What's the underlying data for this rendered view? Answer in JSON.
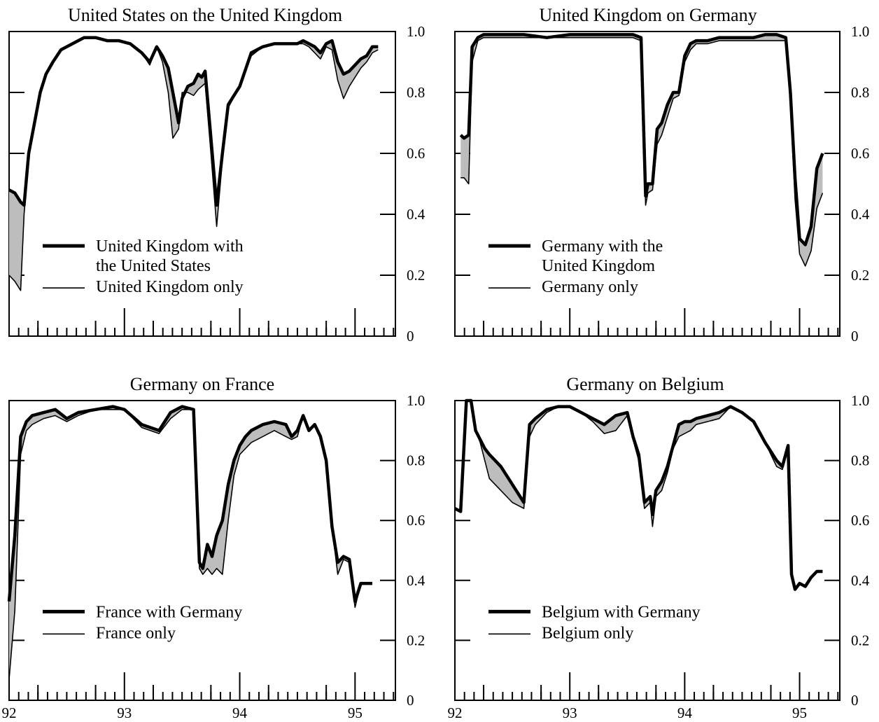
{
  "chart_data": [
    {
      "type": "line",
      "title": "United States on the United Kingdom",
      "x_ticks": [
        "92",
        "93",
        "94",
        "95"
      ],
      "y_ticks": [
        "0",
        "0.2",
        "0.4",
        "0.6",
        "0.8",
        "1.0"
      ],
      "ylim": [
        0,
        1
      ],
      "xlim": [
        92.0,
        95.35
      ],
      "grid": false,
      "legend_position": "lower-left",
      "series": [
        {
          "name": "United Kingdom with the United States",
          "style": "thick",
          "x": [
            92.0,
            92.05,
            92.1,
            92.13,
            92.17,
            92.22,
            92.27,
            92.32,
            92.38,
            92.45,
            92.55,
            92.65,
            92.75,
            92.85,
            92.95,
            93.05,
            93.15,
            93.22,
            93.28,
            93.33,
            93.38,
            93.42,
            93.47,
            93.5,
            93.55,
            93.6,
            93.64,
            93.67,
            93.7,
            93.75,
            93.8,
            93.85,
            93.9,
            94.0,
            94.1,
            94.2,
            94.3,
            94.4,
            94.5,
            94.55,
            94.6,
            94.65,
            94.7,
            94.75,
            94.8,
            94.85,
            94.9,
            94.95,
            95.05,
            95.1,
            95.15,
            95.2
          ],
          "values": [
            0.48,
            0.47,
            0.44,
            0.43,
            0.6,
            0.7,
            0.8,
            0.86,
            0.9,
            0.94,
            0.96,
            0.98,
            0.98,
            0.97,
            0.97,
            0.96,
            0.93,
            0.9,
            0.95,
            0.92,
            0.88,
            0.8,
            0.7,
            0.78,
            0.82,
            0.83,
            0.86,
            0.85,
            0.87,
            0.65,
            0.43,
            0.6,
            0.76,
            0.82,
            0.93,
            0.95,
            0.96,
            0.96,
            0.96,
            0.97,
            0.96,
            0.95,
            0.93,
            0.96,
            0.97,
            0.9,
            0.86,
            0.87,
            0.91,
            0.92,
            0.95,
            0.95
          ]
        },
        {
          "name": "United Kingdom only",
          "style": "thin",
          "x": [
            92.0,
            92.05,
            92.1,
            92.13,
            92.17,
            92.22,
            92.27,
            92.32,
            92.38,
            92.45,
            92.55,
            92.65,
            92.75,
            92.85,
            92.95,
            93.05,
            93.15,
            93.22,
            93.28,
            93.33,
            93.38,
            93.42,
            93.47,
            93.5,
            93.55,
            93.6,
            93.64,
            93.67,
            93.7,
            93.75,
            93.8,
            93.85,
            93.9,
            94.0,
            94.1,
            94.2,
            94.3,
            94.4,
            94.5,
            94.55,
            94.6,
            94.65,
            94.7,
            94.75,
            94.8,
            94.85,
            94.9,
            94.95,
            95.05,
            95.1,
            95.15,
            95.2
          ],
          "values": [
            0.2,
            0.18,
            0.15,
            0.4,
            0.58,
            0.7,
            0.8,
            0.86,
            0.9,
            0.94,
            0.96,
            0.98,
            0.98,
            0.97,
            0.97,
            0.96,
            0.93,
            0.89,
            0.95,
            0.9,
            0.8,
            0.65,
            0.68,
            0.8,
            0.8,
            0.79,
            0.81,
            0.82,
            0.83,
            0.6,
            0.36,
            0.58,
            0.75,
            0.82,
            0.92,
            0.95,
            0.96,
            0.96,
            0.96,
            0.96,
            0.95,
            0.93,
            0.91,
            0.95,
            0.94,
            0.84,
            0.78,
            0.82,
            0.88,
            0.9,
            0.93,
            0.94
          ]
        }
      ]
    },
    {
      "type": "line",
      "title": "United Kingdom on Germany",
      "x_ticks": [
        "92",
        "93",
        "94",
        "95"
      ],
      "y_ticks": [
        "0",
        "0.2",
        "0.4",
        "0.6",
        "0.8",
        "1.0"
      ],
      "ylim": [
        0,
        1
      ],
      "xlim": [
        92.0,
        95.35
      ],
      "grid": false,
      "legend_position": "lower-left",
      "series": [
        {
          "name": "Germany with the United Kingdom",
          "style": "thick",
          "x": [
            92.05,
            92.08,
            92.12,
            92.15,
            92.2,
            92.25,
            92.3,
            92.35,
            92.45,
            92.6,
            92.8,
            93.0,
            93.2,
            93.4,
            93.55,
            93.62,
            93.66,
            93.68,
            93.72,
            93.76,
            93.8,
            93.85,
            93.9,
            93.95,
            94.0,
            94.05,
            94.1,
            94.2,
            94.3,
            94.4,
            94.5,
            94.6,
            94.7,
            94.8,
            94.88,
            94.92,
            94.96,
            95.0,
            95.05,
            95.1,
            95.15,
            95.2
          ],
          "values": [
            0.66,
            0.65,
            0.66,
            0.95,
            0.98,
            0.99,
            0.99,
            0.99,
            0.99,
            0.99,
            0.98,
            0.99,
            0.99,
            0.99,
            0.99,
            0.98,
            0.46,
            0.5,
            0.5,
            0.68,
            0.7,
            0.76,
            0.8,
            0.8,
            0.92,
            0.96,
            0.97,
            0.97,
            0.98,
            0.98,
            0.98,
            0.98,
            0.99,
            0.99,
            0.98,
            0.8,
            0.52,
            0.32,
            0.3,
            0.36,
            0.55,
            0.6
          ]
        },
        {
          "name": "Germany only",
          "style": "thin",
          "x": [
            92.05,
            92.08,
            92.12,
            92.15,
            92.2,
            92.25,
            92.3,
            92.35,
            92.45,
            92.6,
            92.8,
            93.0,
            93.2,
            93.4,
            93.55,
            93.62,
            93.66,
            93.68,
            93.72,
            93.76,
            93.8,
            93.85,
            93.9,
            93.95,
            94.0,
            94.05,
            94.1,
            94.2,
            94.3,
            94.4,
            94.5,
            94.6,
            94.7,
            94.8,
            94.88,
            94.92,
            94.96,
            95.0,
            95.05,
            95.1,
            95.15,
            95.2
          ],
          "values": [
            0.52,
            0.52,
            0.5,
            0.9,
            0.97,
            0.98,
            0.98,
            0.98,
            0.98,
            0.98,
            0.98,
            0.98,
            0.98,
            0.98,
            0.98,
            0.97,
            0.43,
            0.47,
            0.48,
            0.63,
            0.66,
            0.72,
            0.78,
            0.79,
            0.9,
            0.94,
            0.96,
            0.96,
            0.97,
            0.97,
            0.97,
            0.97,
            0.97,
            0.97,
            0.97,
            0.76,
            0.45,
            0.27,
            0.23,
            0.28,
            0.42,
            0.47
          ]
        }
      ]
    },
    {
      "type": "line",
      "title": "Germany on France",
      "x_ticks": [
        "92",
        "93",
        "94",
        "95"
      ],
      "y_ticks": [
        "0",
        "0.2",
        "0.4",
        "0.6",
        "0.8",
        "1.0"
      ],
      "ylim": [
        0,
        1
      ],
      "xlim": [
        92.0,
        95.35
      ],
      "grid": false,
      "legend_position": "lower-left",
      "series": [
        {
          "name": "France with Germany",
          "style": "thick",
          "x": [
            92.0,
            92.05,
            92.1,
            92.15,
            92.2,
            92.3,
            92.4,
            92.5,
            92.6,
            92.75,
            92.9,
            93.0,
            93.15,
            93.3,
            93.4,
            93.5,
            93.6,
            93.65,
            93.68,
            93.72,
            93.76,
            93.8,
            93.85,
            93.9,
            93.95,
            94.0,
            94.05,
            94.1,
            94.2,
            94.3,
            94.4,
            94.45,
            94.5,
            94.55,
            94.6,
            94.65,
            94.7,
            94.75,
            94.8,
            94.85,
            94.9,
            94.95,
            95.0,
            95.05,
            95.1,
            95.15
          ],
          "values": [
            0.33,
            0.55,
            0.88,
            0.93,
            0.95,
            0.96,
            0.97,
            0.94,
            0.96,
            0.97,
            0.98,
            0.97,
            0.92,
            0.9,
            0.96,
            0.98,
            0.97,
            0.46,
            0.44,
            0.52,
            0.48,
            0.55,
            0.6,
            0.72,
            0.8,
            0.85,
            0.88,
            0.9,
            0.92,
            0.93,
            0.92,
            0.88,
            0.9,
            0.95,
            0.9,
            0.92,
            0.88,
            0.8,
            0.58,
            0.46,
            0.48,
            0.47,
            0.33,
            0.39,
            0.39,
            0.39
          ]
        },
        {
          "name": "France only",
          "style": "thin",
          "x": [
            92.0,
            92.05,
            92.1,
            92.15,
            92.2,
            92.3,
            92.4,
            92.5,
            92.6,
            92.75,
            92.9,
            93.0,
            93.15,
            93.3,
            93.4,
            93.5,
            93.6,
            93.65,
            93.68,
            93.72,
            93.76,
            93.8,
            93.85,
            93.9,
            93.95,
            94.0,
            94.05,
            94.1,
            94.2,
            94.3,
            94.4,
            94.45,
            94.5,
            94.55,
            94.6,
            94.65,
            94.7,
            94.75,
            94.8,
            94.85,
            94.9,
            94.95,
            95.0,
            95.05,
            95.1,
            95.15
          ],
          "values": [
            0.07,
            0.3,
            0.82,
            0.9,
            0.92,
            0.94,
            0.95,
            0.93,
            0.95,
            0.97,
            0.97,
            0.97,
            0.91,
            0.89,
            0.94,
            0.97,
            0.97,
            0.44,
            0.42,
            0.44,
            0.42,
            0.44,
            0.42,
            0.6,
            0.75,
            0.82,
            0.84,
            0.86,
            0.88,
            0.9,
            0.88,
            0.87,
            0.88,
            0.95,
            0.9,
            0.92,
            0.88,
            0.8,
            0.58,
            0.42,
            0.47,
            0.46,
            0.31,
            0.39,
            0.39,
            0.39
          ]
        }
      ]
    },
    {
      "type": "line",
      "title": "Germany on Belgium",
      "x_ticks": [
        "92",
        "93",
        "94",
        "95"
      ],
      "y_ticks": [
        "0",
        "0.2",
        "0.4",
        "0.6",
        "0.8",
        "1.0"
      ],
      "ylim": [
        0,
        1
      ],
      "xlim": [
        92.0,
        95.35
      ],
      "grid": false,
      "legend_position": "lower-left",
      "series": [
        {
          "name": "Belgium with Germany",
          "style": "thick",
          "x": [
            92.0,
            92.05,
            92.1,
            92.14,
            92.18,
            92.22,
            92.26,
            92.3,
            92.4,
            92.5,
            92.6,
            92.65,
            92.7,
            92.8,
            92.9,
            93.0,
            93.1,
            93.2,
            93.3,
            93.4,
            93.5,
            93.55,
            93.6,
            93.65,
            93.7,
            93.72,
            93.75,
            93.8,
            93.85,
            93.9,
            93.95,
            94.0,
            94.05,
            94.1,
            94.2,
            94.3,
            94.4,
            94.5,
            94.6,
            94.7,
            94.8,
            94.85,
            94.9,
            94.93,
            94.96,
            95.0,
            95.05,
            95.1,
            95.15,
            95.2
          ],
          "values": [
            0.64,
            0.63,
            1.0,
            1.0,
            0.9,
            0.87,
            0.84,
            0.82,
            0.78,
            0.72,
            0.66,
            0.92,
            0.94,
            0.97,
            0.98,
            0.98,
            0.96,
            0.94,
            0.92,
            0.95,
            0.96,
            0.88,
            0.82,
            0.66,
            0.68,
            0.62,
            0.7,
            0.73,
            0.78,
            0.85,
            0.92,
            0.93,
            0.93,
            0.94,
            0.95,
            0.96,
            0.98,
            0.96,
            0.93,
            0.86,
            0.8,
            0.78,
            0.85,
            0.42,
            0.37,
            0.39,
            0.38,
            0.41,
            0.43,
            0.43
          ]
        },
        {
          "name": "Belgium only",
          "style": "thin",
          "x": [
            92.0,
            92.05,
            92.1,
            92.14,
            92.18,
            92.22,
            92.26,
            92.3,
            92.4,
            92.5,
            92.6,
            92.65,
            92.7,
            92.8,
            92.9,
            93.0,
            93.1,
            93.2,
            93.3,
            93.4,
            93.5,
            93.55,
            93.6,
            93.65,
            93.7,
            93.72,
            93.75,
            93.8,
            93.85,
            93.9,
            93.95,
            94.0,
            94.05,
            94.1,
            94.2,
            94.3,
            94.4,
            94.5,
            94.6,
            94.7,
            94.8,
            94.85,
            94.9,
            94.93,
            94.96,
            95.0,
            95.05,
            95.1,
            95.15,
            95.2
          ],
          "values": [
            0.64,
            0.63,
            1.0,
            1.0,
            0.9,
            0.86,
            0.8,
            0.74,
            0.7,
            0.66,
            0.64,
            0.88,
            0.92,
            0.96,
            0.98,
            0.98,
            0.96,
            0.93,
            0.89,
            0.9,
            0.95,
            0.87,
            0.8,
            0.64,
            0.66,
            0.58,
            0.68,
            0.7,
            0.76,
            0.84,
            0.88,
            0.89,
            0.9,
            0.92,
            0.93,
            0.94,
            0.98,
            0.96,
            0.93,
            0.86,
            0.78,
            0.77,
            0.84,
            0.42,
            0.37,
            0.39,
            0.38,
            0.41,
            0.43,
            0.43
          ]
        }
      ]
    }
  ]
}
